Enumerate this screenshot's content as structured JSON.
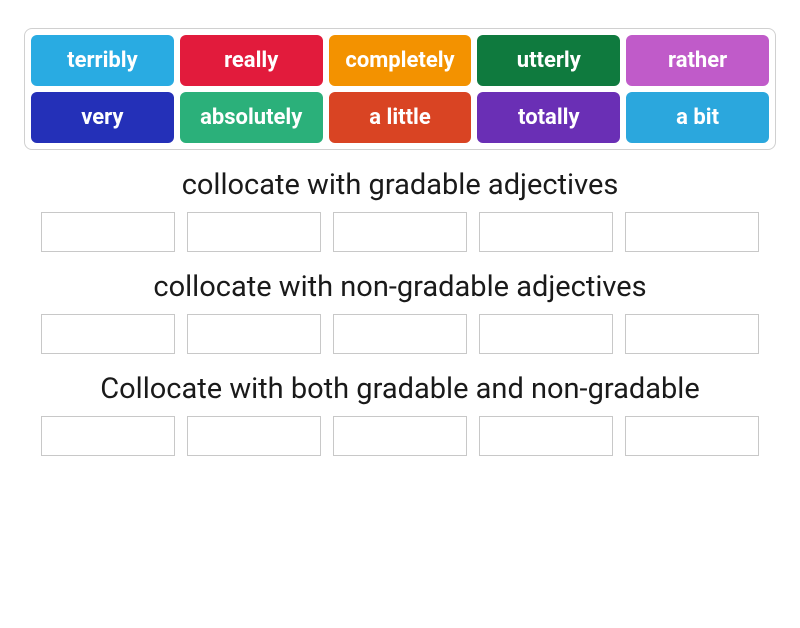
{
  "wordBank": {
    "border_color": "#d0d0d0",
    "tiles": [
      {
        "label": "terribly",
        "bg": "#29abe2"
      },
      {
        "label": "really",
        "bg": "#e21b3c"
      },
      {
        "label": "completely",
        "bg": "#f39200"
      },
      {
        "label": "utterly",
        "bg": "#0f7a3e"
      },
      {
        "label": "rather",
        "bg": "#c05bc9"
      },
      {
        "label": "very",
        "bg": "#2430b8"
      },
      {
        "label": "absolutely",
        "bg": "#2bb07a"
      },
      {
        "label": "a little",
        "bg": "#d94423"
      },
      {
        "label": "totally",
        "bg": "#6a2fb5"
      },
      {
        "label": "a bit",
        "bg": "#2ba7dd"
      }
    ],
    "tile_text_color": "#ffffff",
    "tile_fontsize": 22,
    "tile_fontweight": 700
  },
  "categories": [
    {
      "title": "collocate with gradable adjectives",
      "slot_count": 5
    },
    {
      "title": "collocate with non-gradable adjectives",
      "slot_count": 5
    },
    {
      "title": "Collocate with both gradable and non-gradable",
      "slot_count": 5
    }
  ],
  "slot_style": {
    "border_color": "#c8c8c8",
    "width": 134,
    "height": 40
  },
  "title_style": {
    "color": "#1a1a1a",
    "fontsize": 29
  }
}
